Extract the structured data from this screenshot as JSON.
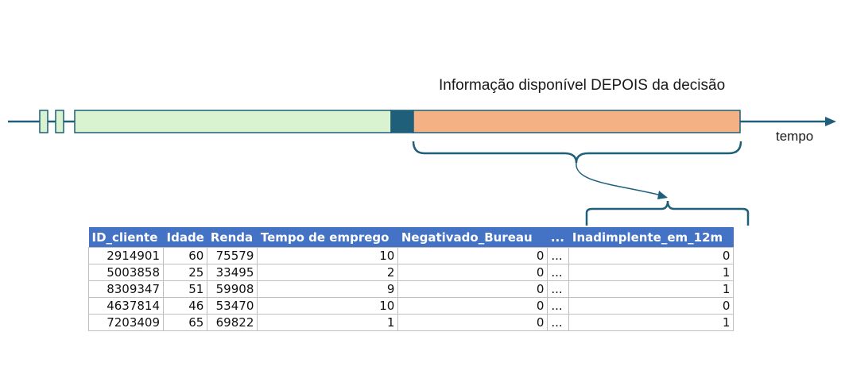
{
  "labels": {
    "after_decision": "Informação disponível DEPOIS da decisão",
    "time_axis": "tempo"
  },
  "colors": {
    "axis": "#1f5f7a",
    "before_block": "#d9f2d0",
    "decision_block": "#1f5f7a",
    "after_block": "#f4b183",
    "brace": "#1f5f7a",
    "table_header": "#4472c4"
  },
  "table": {
    "headers": [
      "ID_cliente",
      "Idade",
      "Renda",
      "Tempo de emprego",
      "Negativado_Bureau",
      "...",
      "Inadimplente_em_12m"
    ],
    "rows": [
      [
        "2914901",
        "60",
        "75579",
        "10",
        "0",
        "...",
        "0"
      ],
      [
        "5003858",
        "25",
        "33495",
        "2",
        "0",
        "...",
        "1"
      ],
      [
        "8309347",
        "51",
        "59908",
        "9",
        "0",
        "...",
        "1"
      ],
      [
        "4637814",
        "46",
        "53470",
        "10",
        "0",
        "...",
        "0"
      ],
      [
        "7203409",
        "65",
        "69822",
        "1",
        "0",
        "...",
        "1"
      ]
    ]
  }
}
